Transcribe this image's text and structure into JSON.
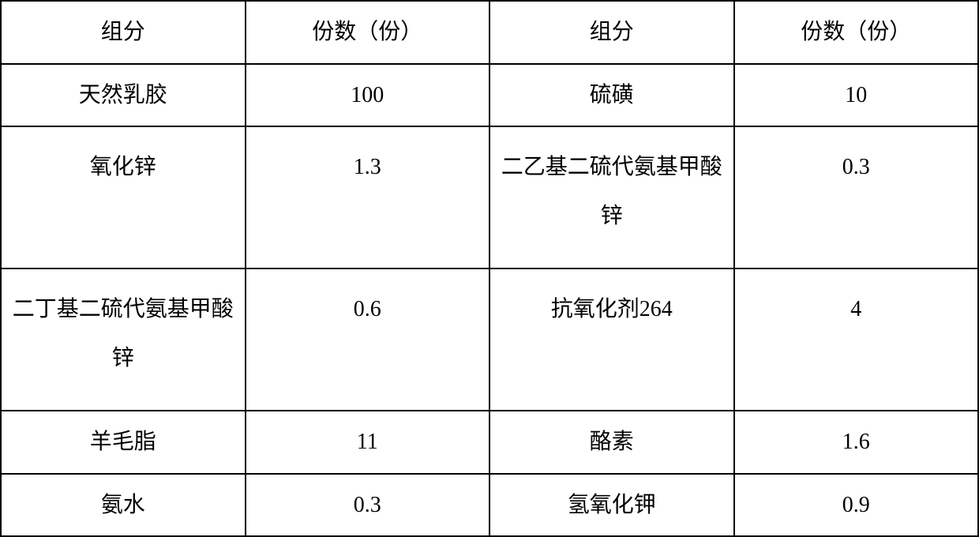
{
  "table": {
    "type": "table",
    "columns": 4,
    "border_color": "#000000",
    "background_color": "#ffffff",
    "text_color": "#000000",
    "font_size_pt": 21,
    "font_family": "SimSun",
    "column_widths_pct": [
      25,
      25,
      25,
      25
    ],
    "header": {
      "col0": "组分",
      "col1": "份数（份）",
      "col2": "组分",
      "col3": "份数（份）"
    },
    "rows": [
      {
        "c0": "天然乳胶",
        "c1": "100",
        "c2": "硫磺",
        "c3": "10"
      },
      {
        "c0": "氧化锌",
        "c1": "1.3",
        "c2": "二乙基二硫代氨基甲酸锌",
        "c3": "0.3"
      },
      {
        "c0": "二丁基二硫代氨基甲酸锌",
        "c1": "0.6",
        "c2": "抗氧化剂264",
        "c3": "4"
      },
      {
        "c0": "羊毛脂",
        "c1": "11",
        "c2": "酪素",
        "c3": "1.6"
      },
      {
        "c0": "氨水",
        "c1": "0.3",
        "c2": "氢氧化钾",
        "c3": "0.9"
      }
    ]
  }
}
